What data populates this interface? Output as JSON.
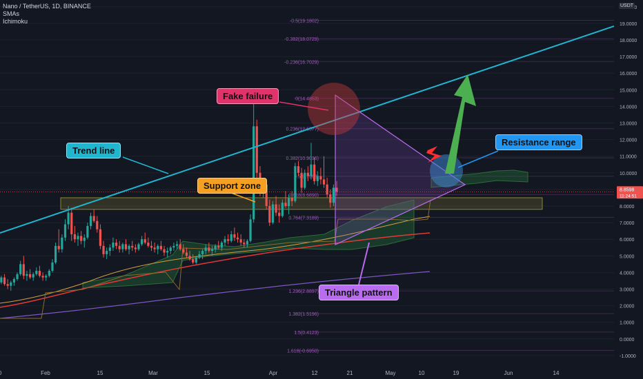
{
  "header": {
    "symbol": "Nano / TetherUS, 1D, BINANCE",
    "indicator1": "SMAs",
    "indicator2": "Ichimoku"
  },
  "quote_label": "USDT",
  "price_tag": {
    "price": "8.8598",
    "countdown": "11:24:51"
  },
  "colors": {
    "background": "#131722",
    "up": "#26a69a",
    "down": "#ef5350",
    "trend": "#21b5cf",
    "fib": "#9e5bb8",
    "triangle": "#b86cf0",
    "arrow": "#4caf50",
    "support": "#ffeb3b",
    "sma_orange": "#d4a040",
    "sma_red": "#e53935",
    "sma_purple": "#7e57c2"
  },
  "annotations": {
    "trend_line": "Trend line",
    "support_zone": "Support zone",
    "fake_failure": "Fake failure",
    "resistance_range": "Resistance range",
    "triangle_pattern": "Triangle pattern"
  },
  "chart_data": {
    "type": "candlestick",
    "title": "Nano / TetherUS, 1D, BINANCE",
    "y_axis": {
      "ylim": [
        -1.9,
        20.3
      ],
      "ticks": [
        "-1.0000",
        "0.0000",
        "1.0000",
        "2.0000",
        "3.0000",
        "4.0000",
        "5.0000",
        "6.0000",
        "7.0000",
        "8.0000",
        "9.0000",
        "10.0000",
        "11.0000",
        "12.0000",
        "13.0000",
        "14.0000",
        "15.0000",
        "16.0000",
        "17.0000",
        "18.0000",
        "19.0000",
        "20.0000"
      ]
    },
    "x_axis": {
      "ticks": [
        "0",
        "Feb",
        "15",
        "Mar",
        "15",
        "Apr",
        "12",
        "21",
        "May",
        "10",
        "19",
        "Jun",
        "14"
      ]
    },
    "fib_levels": [
      {
        "label": "0(14.4853)",
        "value": 14.4853
      },
      {
        "label": "0.236(12.6577)",
        "value": 12.6577
      },
      {
        "label": "0.382(10.9036)",
        "value": 10.9036
      },
      {
        "label": "0.5(9.7963)",
        "value": 9.7963
      },
      {
        "label": "0.618(8.6890)",
        "value": 8.689
      },
      {
        "label": "0.764(7.3189)",
        "value": 7.3189
      },
      {
        "label": "1.236(2.8897)",
        "value": 2.8897
      },
      {
        "label": "1.382(1.5196)",
        "value": 1.5196
      },
      {
        "label": "1.5(0.4123)",
        "value": 0.4123
      },
      {
        "label": "1.618(-0.6950)",
        "value": -0.695
      },
      {
        "label": "-0.236(16.7029)",
        "value": 16.7029
      },
      {
        "label": "-0.382(18.0729)",
        "value": 18.0729
      },
      {
        "label": "-0.5(19.1802)",
        "value": 19.1802
      }
    ],
    "current_price": 8.8598,
    "support_zone": [
      7.8,
      8.5
    ],
    "candles": [
      [
        3.4,
        3.8,
        3.1,
        3.5
      ],
      [
        3.5,
        3.7,
        3.2,
        3.3
      ],
      [
        3.3,
        3.6,
        3.0,
        3.4
      ],
      [
        3.4,
        3.8,
        3.3,
        3.7
      ],
      [
        3.7,
        3.9,
        3.2,
        3.3
      ],
      [
        3.3,
        3.6,
        3.0,
        3.2
      ],
      [
        3.2,
        3.5,
        2.9,
        3.4
      ],
      [
        3.4,
        3.7,
        3.2,
        3.6
      ],
      [
        3.6,
        4.0,
        3.5,
        3.9
      ],
      [
        3.9,
        4.7,
        3.8,
        4.5
      ],
      [
        4.5,
        5.0,
        3.6,
        3.8
      ],
      [
        3.8,
        4.1,
        3.5,
        3.9
      ],
      [
        3.9,
        4.2,
        3.6,
        3.7
      ],
      [
        3.7,
        4.0,
        3.5,
        3.9
      ],
      [
        3.9,
        4.3,
        3.8,
        4.1
      ],
      [
        4.1,
        4.4,
        3.7,
        3.8
      ],
      [
        3.8,
        4.0,
        3.5,
        3.7
      ],
      [
        3.7,
        3.9,
        3.5,
        3.8
      ],
      [
        3.8,
        4.2,
        3.7,
        4.1
      ],
      [
        4.1,
        4.8,
        4.0,
        4.6
      ],
      [
        4.6,
        5.8,
        4.5,
        5.6
      ],
      [
        5.6,
        6.6,
        5.2,
        5.4
      ],
      [
        5.4,
        6.3,
        5.2,
        6.1
      ],
      [
        6.1,
        7.2,
        5.9,
        6.9
      ],
      [
        6.9,
        8.0,
        6.6,
        7.6
      ],
      [
        7.6,
        7.9,
        5.9,
        6.3
      ],
      [
        6.3,
        6.8,
        5.8,
        6.0
      ],
      [
        6.0,
        6.4,
        5.6,
        6.2
      ],
      [
        6.2,
        6.5,
        5.7,
        5.9
      ],
      [
        5.9,
        6.3,
        5.5,
        6.1
      ],
      [
        6.1,
        7.0,
        6.0,
        6.8
      ],
      [
        6.8,
        7.6,
        6.6,
        7.4
      ],
      [
        7.4,
        7.8,
        7.0,
        7.1
      ],
      [
        7.1,
        7.4,
        6.4,
        6.6
      ],
      [
        6.6,
        6.9,
        5.4,
        5.6
      ],
      [
        5.6,
        5.9,
        4.9,
        5.1
      ],
      [
        5.1,
        5.5,
        4.8,
        5.3
      ],
      [
        5.3,
        5.7,
        5.0,
        5.5
      ],
      [
        5.5,
        6.1,
        5.3,
        5.8
      ],
      [
        5.8,
        6.0,
        5.4,
        5.6
      ],
      [
        5.6,
        5.9,
        5.2,
        5.4
      ],
      [
        5.4,
        5.8,
        5.2,
        5.7
      ],
      [
        5.7,
        6.0,
        5.3,
        5.4
      ],
      [
        5.4,
        5.7,
        5.1,
        5.6
      ],
      [
        5.6,
        5.9,
        5.3,
        5.5
      ],
      [
        5.5,
        5.7,
        5.2,
        5.4
      ],
      [
        5.4,
        5.8,
        5.3,
        5.7
      ],
      [
        5.7,
        6.2,
        5.6,
        6.0
      ],
      [
        6.0,
        6.4,
        5.7,
        5.8
      ],
      [
        5.8,
        6.1,
        5.5,
        5.6
      ],
      [
        5.6,
        5.9,
        5.3,
        5.5
      ],
      [
        5.5,
        5.8,
        5.2,
        5.4
      ],
      [
        5.4,
        5.7,
        5.1,
        5.6
      ],
      [
        5.6,
        5.9,
        5.3,
        5.4
      ],
      [
        5.4,
        5.6,
        5.0,
        5.2
      ],
      [
        5.2,
        5.5,
        4.9,
        5.3
      ],
      [
        5.3,
        5.6,
        5.1,
        5.5
      ],
      [
        5.5,
        5.8,
        5.3,
        5.6
      ],
      [
        5.6,
        5.9,
        5.4,
        5.7
      ],
      [
        5.7,
        6.0,
        5.3,
        5.4
      ],
      [
        5.4,
        5.7,
        5.1,
        5.2
      ],
      [
        5.2,
        5.5,
        4.9,
        5.0
      ],
      [
        5.0,
        5.3,
        4.7,
        4.8
      ],
      [
        4.8,
        5.1,
        4.5,
        4.6
      ],
      [
        4.6,
        5.0,
        4.5,
        4.9
      ],
      [
        4.9,
        5.3,
        4.8,
        5.1
      ],
      [
        5.1,
        5.4,
        4.8,
        5.3
      ],
      [
        5.3,
        5.7,
        5.1,
        5.5
      ],
      [
        5.5,
        5.8,
        5.2,
        5.3
      ],
      [
        5.3,
        5.6,
        5.0,
        5.4
      ],
      [
        5.4,
        5.7,
        5.2,
        5.6
      ],
      [
        5.6,
        5.9,
        5.4,
        5.5
      ],
      [
        5.5,
        5.9,
        5.3,
        5.8
      ],
      [
        5.8,
        6.2,
        5.6,
        6.0
      ],
      [
        6.0,
        6.3,
        5.7,
        5.9
      ],
      [
        5.9,
        6.5,
        5.8,
        6.3
      ],
      [
        6.3,
        6.7,
        5.9,
        6.1
      ],
      [
        6.1,
        6.4,
        5.8,
        6.0
      ],
      [
        6.0,
        6.3,
        5.6,
        5.8
      ],
      [
        5.8,
        6.0,
        5.5,
        5.7
      ],
      [
        5.7,
        6.0,
        5.5,
        5.9
      ],
      [
        5.9,
        7.5,
        5.8,
        7.2
      ],
      [
        7.2,
        14.5,
        7.0,
        12.8
      ],
      [
        12.8,
        13.2,
        9.6,
        10.0
      ],
      [
        10.0,
        10.4,
        8.6,
        8.9
      ],
      [
        8.9,
        9.6,
        8.5,
        9.3
      ],
      [
        9.3,
        9.5,
        7.8,
        8.0
      ],
      [
        8.0,
        8.4,
        6.8,
        7.0
      ],
      [
        7.0,
        8.3,
        6.9,
        8.1
      ],
      [
        8.1,
        8.6,
        7.4,
        7.6
      ],
      [
        7.6,
        8.1,
        7.0,
        7.4
      ],
      [
        7.4,
        8.4,
        7.3,
        8.2
      ],
      [
        8.2,
        8.9,
        7.9,
        8.0
      ],
      [
        8.0,
        8.7,
        7.5,
        8.5
      ],
      [
        8.5,
        8.9,
        8.0,
        8.3
      ],
      [
        8.3,
        10.6,
        8.2,
        10.4
      ],
      [
        10.4,
        10.7,
        9.8,
        10.0
      ],
      [
        10.0,
        10.3,
        8.8,
        9.1
      ],
      [
        9.1,
        10.2,
        9.0,
        10.0
      ],
      [
        10.0,
        10.4,
        9.5,
        9.8
      ],
      [
        9.8,
        11.8,
        9.6,
        10.5
      ],
      [
        10.5,
        10.9,
        9.3,
        9.5
      ],
      [
        9.5,
        10.1,
        9.2,
        9.8
      ],
      [
        9.8,
        10.3,
        9.3,
        9.6
      ],
      [
        9.6,
        11.0,
        9.1,
        9.3
      ],
      [
        9.3,
        9.7,
        8.5,
        8.7
      ],
      [
        8.7,
        9.0,
        7.9,
        8.2
      ],
      [
        8.2,
        9.3,
        8.0,
        9.1
      ],
      [
        9.1,
        9.5,
        8.6,
        8.86
      ]
    ]
  }
}
